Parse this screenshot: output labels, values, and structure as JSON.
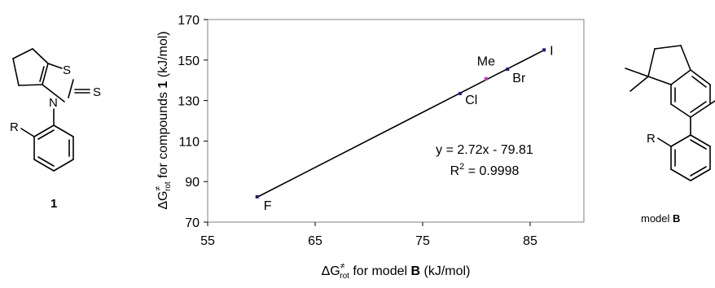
{
  "left_structure": {
    "atom_S_ring": "S",
    "atom_S_thione": "S",
    "atom_N": "N",
    "substituent_R": "R",
    "compound_label": "1"
  },
  "right_structure": {
    "substituent_R": "R",
    "label_prefix": "model ",
    "label_bold": "B"
  },
  "chart_data": {
    "type": "scatter",
    "xlim": [
      55,
      90
    ],
    "ylim": [
      70,
      170
    ],
    "x_ticks": [
      55,
      65,
      75,
      85
    ],
    "y_ticks": [
      70,
      90,
      110,
      130,
      150,
      170
    ],
    "x_tick_labels": [
      "55",
      "65",
      "75",
      "85"
    ],
    "y_tick_labels": [
      "70",
      "90",
      "110",
      "130",
      "150",
      "170"
    ],
    "xlabel": {
      "delta": "ΔG",
      "sup": "≠",
      "sub": "rot",
      "text": " for model ",
      "bold": "B",
      "unit": " (kJ/mol)"
    },
    "ylabel": {
      "delta": "ΔG",
      "sup": "≠",
      "sub": "rot",
      "text": " for compounds ",
      "bold": "1",
      "unit": " (kJ/mol)"
    },
    "points": [
      {
        "label": "F",
        "x": 59.6,
        "y": 82.5,
        "color": "#1a1a8c"
      },
      {
        "label": "Cl",
        "x": 78.5,
        "y": 133.5,
        "color": "#1a1a8c"
      },
      {
        "label": "Me",
        "x": 80.9,
        "y": 140.8,
        "color": "#cc33cc"
      },
      {
        "label": "Br",
        "x": 82.9,
        "y": 145.5,
        "color": "#1a1a8c"
      },
      {
        "label": "I",
        "x": 86.3,
        "y": 155.0,
        "color": "#1a1a8c"
      }
    ],
    "fit": {
      "slope": 2.72,
      "intercept": -79.81,
      "equation": "y = 2.72x - 79.81",
      "r2_prefix": "R",
      "r2_sup": "2",
      "r2_value": " = 0.9998"
    },
    "grid": false,
    "legend": "none"
  }
}
